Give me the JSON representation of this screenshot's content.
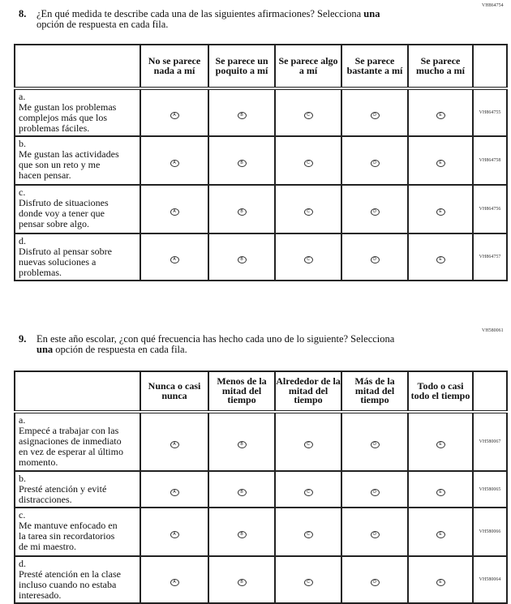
{
  "q8": {
    "code": "VH864754",
    "number": "8.",
    "text1": "¿En qué medida te describe cada una de las siguientes afirmaciones? Selecciona ",
    "bold": "una",
    "text2": "opción de respuesta en cada fila.",
    "headers": [
      "No se parece nada a mí",
      "Se parece un poquito a mí",
      "Se parece algo a mí",
      "Se parece bastante a mí",
      "Se parece mucho a mí"
    ],
    "rows": [
      {
        "letter": "a.",
        "text": "Me gustan los problemas complejos más que los problemas fáciles.",
        "code": "VH864755"
      },
      {
        "letter": "b.",
        "text": "Me gustan las actividades que son un reto y me hacen pensar.",
        "code": "VH864758"
      },
      {
        "letter": "c.",
        "text": "Disfruto de situaciones donde voy a tener que pensar sobre algo.",
        "code": "VH864756"
      },
      {
        "letter": "d.",
        "text": "Disfruto al pensar sobre nuevas soluciones a problemas.",
        "code": "VH864757"
      }
    ]
  },
  "q9": {
    "code": "VH580061",
    "number": "9.",
    "text1": "En este año escolar, ¿con qué frecuencia has hecho cada uno de lo siguiente? Selecciona",
    "bold": "una",
    "text2": " opción de respuesta en cada fila.",
    "headers": [
      "Nunca o casi nunca",
      "Menos de la mitad del tiempo",
      "Alrededor de la mitad del tiempo",
      "Más de la mitad del tiempo",
      "Todo o casi todo el tiempo"
    ],
    "rows": [
      {
        "letter": "a.",
        "text": "Empecé a trabajar con las asignaciones de inmediato en vez de esperar al último momento.",
        "code": "VH580067"
      },
      {
        "letter": "b.",
        "text": "Presté atención y evité distracciones.",
        "code": "VH580065"
      },
      {
        "letter": "c.",
        "text": "Me mantuve enfocado en la tarea sin recordatorios de mi maestro.",
        "code": "VH580066"
      },
      {
        "letter": "d.",
        "text": "Presté atención en la clase incluso cuando no estaba interesado.",
        "code": "VH580064"
      }
    ]
  },
  "options": [
    "A",
    "B",
    "C",
    "D",
    "E"
  ]
}
